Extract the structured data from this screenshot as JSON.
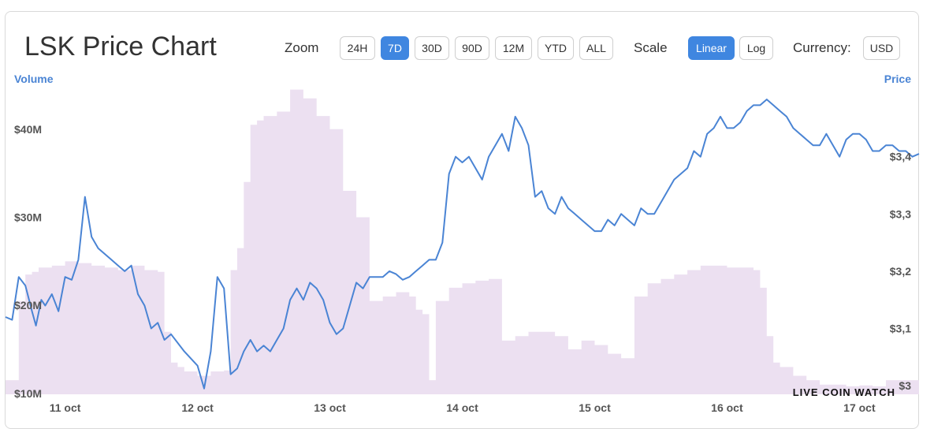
{
  "header": {
    "title": "LSK Price Chart",
    "zoom_label": "Zoom",
    "zoom_options": [
      "24H",
      "7D",
      "30D",
      "90D",
      "12M",
      "YTD",
      "ALL"
    ],
    "zoom_active": "7D",
    "scale_label": "Scale",
    "scale_options": [
      "Linear",
      "Log"
    ],
    "scale_active": "Linear",
    "currency_label": "Currency:",
    "currency_value": "USD"
  },
  "watermark": "LIVE COIN WATCH",
  "colors": {
    "price_line": "#4a84d4",
    "volume_fill": "#ece0f1",
    "accent": "#3f86e0",
    "axis_title": "#4a84d4"
  },
  "chart_data": {
    "type": "line",
    "left_axis_title": "Volume",
    "right_axis_title": "Price",
    "x_ticks": [
      "11 oct",
      "12 oct",
      "13 oct",
      "14 oct",
      "15 oct",
      "16 oct",
      "17 oct"
    ],
    "x_range": [
      -0.45,
      6.45
    ],
    "volume_ticks": [
      "$10M",
      "$20M",
      "$30M",
      "$40M"
    ],
    "volume_tick_values": [
      10,
      20,
      30,
      40
    ],
    "volume_range": [
      9.9,
      45
    ],
    "price_ticks": [
      "$3",
      "$3,1",
      "$3,2",
      "$3,3",
      "$3,4"
    ],
    "price_tick_values": [
      3.0,
      3.1,
      3.2,
      3.3,
      3.4
    ],
    "price_range": [
      2.985,
      3.525
    ],
    "volume_unit": "M USD",
    "volume": {
      "x": [
        -0.45,
        -0.4,
        -0.35,
        -0.3,
        -0.25,
        -0.2,
        -0.1,
        0.0,
        0.1,
        0.2,
        0.3,
        0.4,
        0.5,
        0.6,
        0.7,
        0.75,
        0.8,
        0.85,
        0.9,
        1.0,
        1.1,
        1.2,
        1.25,
        1.3,
        1.35,
        1.4,
        1.45,
        1.5,
        1.6,
        1.7,
        1.8,
        1.9,
        2.0,
        2.1,
        2.2,
        2.3,
        2.4,
        2.5,
        2.6,
        2.65,
        2.7,
        2.75,
        2.8,
        2.9,
        3.0,
        3.1,
        3.2,
        3.3,
        3.4,
        3.5,
        3.6,
        3.7,
        3.8,
        3.9,
        4.0,
        4.1,
        4.2,
        4.3,
        4.4,
        4.5,
        4.6,
        4.7,
        4.8,
        4.9,
        5.0,
        5.1,
        5.2,
        5.25,
        5.3,
        5.35,
        5.4,
        5.5,
        5.6,
        5.7,
        5.8,
        5.9,
        6.0,
        6.1,
        6.2,
        6.3,
        6.45
      ],
      "values": [
        11.5,
        11.5,
        20.5,
        23.5,
        23.8,
        24.3,
        24.5,
        25.0,
        24.8,
        24.5,
        24.3,
        24.0,
        24.5,
        24.0,
        23.8,
        17.0,
        13.5,
        13.0,
        12.5,
        12.0,
        12.5,
        12.6,
        24.0,
        26.5,
        34.0,
        40.5,
        41.0,
        41.5,
        42.0,
        44.5,
        43.5,
        41.5,
        40.0,
        33.0,
        30.0,
        20.5,
        21.0,
        21.5,
        21.0,
        19.5,
        19.0,
        11.5,
        20.5,
        22.0,
        22.5,
        22.8,
        23.0,
        16.0,
        16.5,
        17.0,
        17.0,
        16.5,
        15.0,
        16.0,
        15.5,
        14.5,
        14.0,
        21.0,
        22.5,
        23.0,
        23.5,
        24.0,
        24.5,
        24.5,
        24.3,
        24.3,
        24.0,
        22.0,
        16.5,
        13.5,
        13.0,
        12.0,
        11.5,
        11.0,
        11.0,
        10.8,
        10.9,
        10.8,
        11.5,
        11.5,
        11.2
      ]
    },
    "price": {
      "x": [
        -0.45,
        -0.4,
        -0.35,
        -0.3,
        -0.25,
        -0.22,
        -0.18,
        -0.15,
        -0.1,
        -0.05,
        0.0,
        0.05,
        0.1,
        0.15,
        0.2,
        0.25,
        0.3,
        0.35,
        0.4,
        0.45,
        0.5,
        0.55,
        0.6,
        0.65,
        0.7,
        0.75,
        0.8,
        0.9,
        1.0,
        1.05,
        1.1,
        1.15,
        1.2,
        1.25,
        1.3,
        1.35,
        1.4,
        1.45,
        1.5,
        1.55,
        1.6,
        1.65,
        1.7,
        1.75,
        1.8,
        1.85,
        1.9,
        1.95,
        2.0,
        2.05,
        2.1,
        2.15,
        2.2,
        2.25,
        2.3,
        2.35,
        2.4,
        2.45,
        2.5,
        2.55,
        2.6,
        2.65,
        2.7,
        2.75,
        2.8,
        2.85,
        2.9,
        2.95,
        3.0,
        3.05,
        3.1,
        3.15,
        3.2,
        3.25,
        3.3,
        3.35,
        3.4,
        3.45,
        3.5,
        3.55,
        3.6,
        3.65,
        3.7,
        3.75,
        3.8,
        3.85,
        3.9,
        3.95,
        4.0,
        4.05,
        4.1,
        4.15,
        4.2,
        4.25,
        4.3,
        4.35,
        4.4,
        4.45,
        4.5,
        4.55,
        4.6,
        4.65,
        4.7,
        4.75,
        4.8,
        4.85,
        4.9,
        4.95,
        5.0,
        5.05,
        5.1,
        5.15,
        5.2,
        5.25,
        5.3,
        5.35,
        5.4,
        5.45,
        5.5,
        5.55,
        5.6,
        5.65,
        5.7,
        5.75,
        5.8,
        5.85,
        5.9,
        5.95,
        6.0,
        6.05,
        6.1,
        6.15,
        6.2,
        6.25,
        6.3,
        6.35,
        6.4,
        6.45
      ],
      "values": [
        3.12,
        3.115,
        3.19,
        3.175,
        3.13,
        3.105,
        3.15,
        3.14,
        3.16,
        3.13,
        3.19,
        3.185,
        3.22,
        3.33,
        3.26,
        3.24,
        3.23,
        3.22,
        3.21,
        3.2,
        3.21,
        3.16,
        3.14,
        3.1,
        3.11,
        3.08,
        3.09,
        3.06,
        3.035,
        2.995,
        3.06,
        3.19,
        3.17,
        3.02,
        3.03,
        3.06,
        3.08,
        3.06,
        3.07,
        3.06,
        3.08,
        3.1,
        3.15,
        3.17,
        3.15,
        3.18,
        3.17,
        3.15,
        3.11,
        3.09,
        3.1,
        3.14,
        3.18,
        3.17,
        3.19,
        3.19,
        3.19,
        3.2,
        3.195,
        3.185,
        3.19,
        3.2,
        3.21,
        3.22,
        3.22,
        3.25,
        3.37,
        3.4,
        3.39,
        3.4,
        3.38,
        3.36,
        3.4,
        3.42,
        3.44,
        3.41,
        3.47,
        3.45,
        3.42,
        3.33,
        3.34,
        3.31,
        3.3,
        3.33,
        3.31,
        3.3,
        3.29,
        3.28,
        3.27,
        3.27,
        3.29,
        3.28,
        3.3,
        3.29,
        3.28,
        3.31,
        3.3,
        3.3,
        3.32,
        3.34,
        3.36,
        3.37,
        3.38,
        3.41,
        3.4,
        3.44,
        3.45,
        3.47,
        3.45,
        3.45,
        3.46,
        3.48,
        3.49,
        3.49,
        3.5,
        3.49,
        3.48,
        3.47,
        3.45,
        3.44,
        3.43,
        3.42,
        3.42,
        3.44,
        3.42,
        3.4,
        3.43,
        3.44,
        3.44,
        3.43,
        3.41,
        3.41,
        3.42,
        3.42,
        3.41,
        3.41,
        3.4,
        3.405
      ]
    },
    "price_unit": "USD",
    "grid": false,
    "legend": "none"
  }
}
